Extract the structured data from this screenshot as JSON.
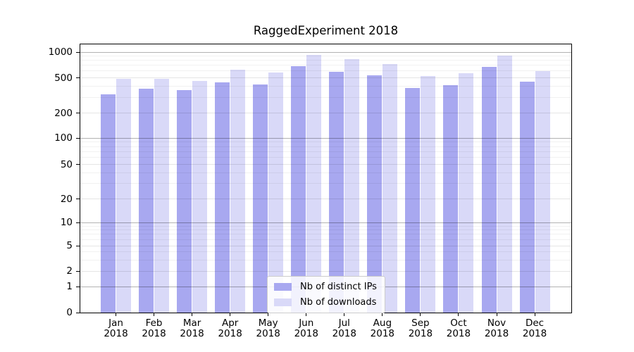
{
  "title": "RaggedExperiment 2018",
  "colors": {
    "distinct_ips": "#a8a8f0",
    "downloads": "#d9d9f8",
    "axis": "#000000",
    "legend_border": "#cccccc"
  },
  "legend": {
    "items": [
      {
        "label": "Nb of distinct IPs",
        "series": "distinct_ips"
      },
      {
        "label": "Nb of downloads",
        "series": "downloads"
      }
    ]
  },
  "chart_data": {
    "type": "bar",
    "title": "RaggedExperiment 2018",
    "categories": [
      "Jan",
      "Feb",
      "Mar",
      "Apr",
      "May",
      "Jun",
      "Jul",
      "Aug",
      "Sep",
      "Oct",
      "Nov",
      "Dec"
    ],
    "x_year_label": "2018",
    "series": [
      {
        "name": "Nb of distinct IPs",
        "key": "distinct_ips",
        "values": [
          325,
          375,
          365,
          440,
          420,
          680,
          590,
          530,
          380,
          410,
          665,
          455
        ]
      },
      {
        "name": "Nb of downloads",
        "key": "downloads",
        "values": [
          485,
          490,
          460,
          620,
          580,
          930,
          820,
          730,
          525,
          570,
          910,
          600
        ]
      }
    ],
    "y_axis": {
      "scale": "symlog",
      "tick_labels": [
        "1000",
        "500",
        "200",
        "100",
        "50",
        "20",
        "10",
        "5",
        "2",
        "1",
        "0"
      ],
      "ylim": [
        0,
        1250
      ]
    },
    "legend_position": "lower center",
    "grid": true
  }
}
